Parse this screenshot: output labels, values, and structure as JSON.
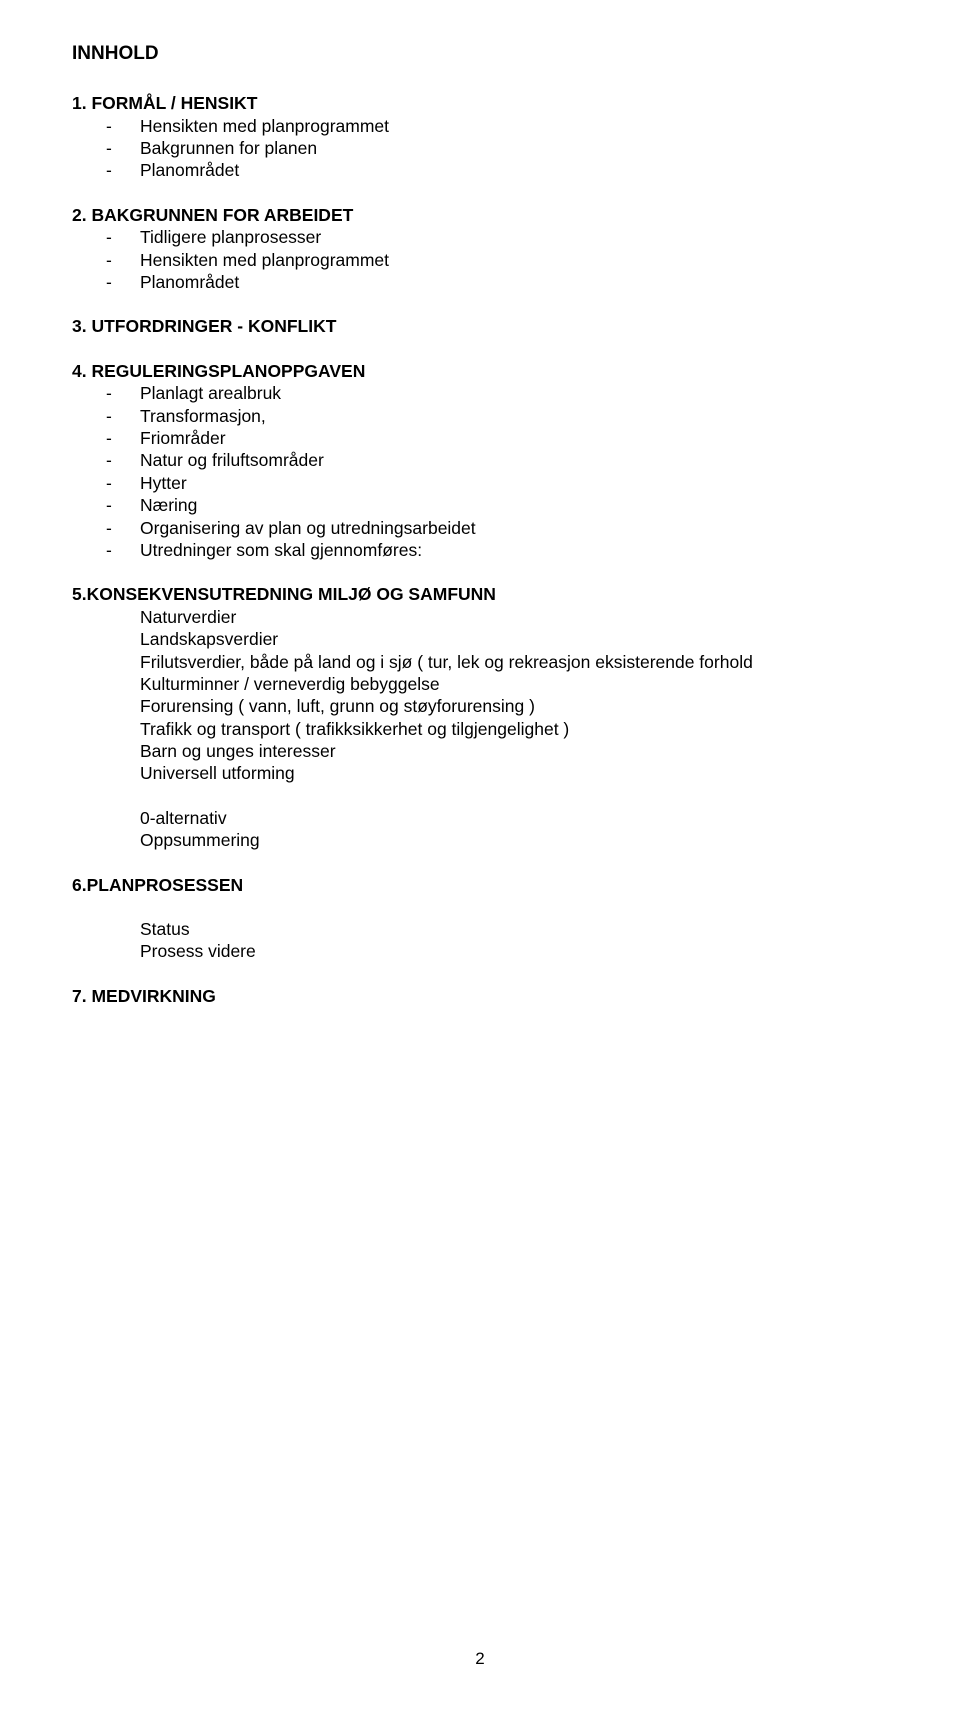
{
  "title": "INNHOLD",
  "sections": [
    {
      "heading": "1. FORMÅL / HENSIKT",
      "bullets": [
        "Hensikten med planprogrammet",
        "Bakgrunnen for planen",
        "Planområdet"
      ]
    },
    {
      "heading": "2. BAKGRUNNEN FOR ARBEIDET",
      "bullets": [
        "Tidligere planprosesser",
        "Hensikten med planprogrammet",
        "Planområdet"
      ]
    },
    {
      "heading": "3. UTFORDRINGER - KONFLIKT",
      "bullets": []
    },
    {
      "heading": "4. REGULERINGSPLANOPPGAVEN",
      "bullets": [
        "Planlagt arealbruk",
        "Transformasjon,",
        "Friområder",
        "Natur og friluftsområder",
        "Hytter",
        "Næring",
        "Organisering av plan og utredningsarbeidet",
        "Utredninger som skal gjennomføres:"
      ]
    }
  ],
  "section5": {
    "heading": "5.KONSEKVENSUTREDNING MILJØ OG SAMFUNN",
    "lines": [
      "Naturverdier",
      "Landskapsverdier",
      "Frilutsverdier, både på land og i sjø ( tur, lek og rekreasjon eksisterende forhold",
      "Kulturminner / verneverdig bebyggelse",
      "Forurensing ( vann, luft, grunn og støyforurensing )",
      "Trafikk og transport ( trafikksikkerhet og tilgjengelighet )",
      "Barn og unges interesser",
      "Universell utforming"
    ],
    "lines2": [
      "0-alternativ",
      "Oppsummering"
    ]
  },
  "section6": {
    "heading": "6.PLANPROSESSEN",
    "lines": [
      "Status",
      "Prosess videre"
    ]
  },
  "section7": {
    "heading": "7. MEDVIRKNING"
  },
  "pageNumber": "2",
  "dash": "-"
}
